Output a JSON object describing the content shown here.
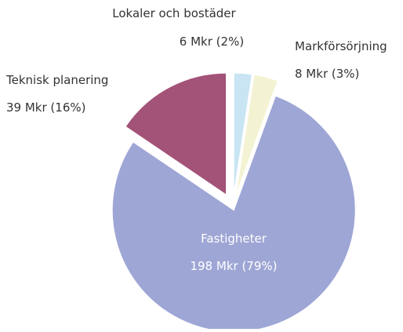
{
  "chart_data": {
    "type": "pie",
    "categories": [
      "Lokaler och bostäder",
      "Markförsörjning",
      "Fastigheter",
      "Teknisk planering"
    ],
    "values": [
      6,
      8,
      198,
      39
    ],
    "value_labels": [
      "6 Mkr (2%)",
      "8 Mkr (3%)",
      "198 Mkr (79%)",
      "39 Mkr (16%)"
    ],
    "colors": [
      "#c9e5f3",
      "#f3f3d3",
      "#9ea6d5",
      "#a35278"
    ]
  }
}
